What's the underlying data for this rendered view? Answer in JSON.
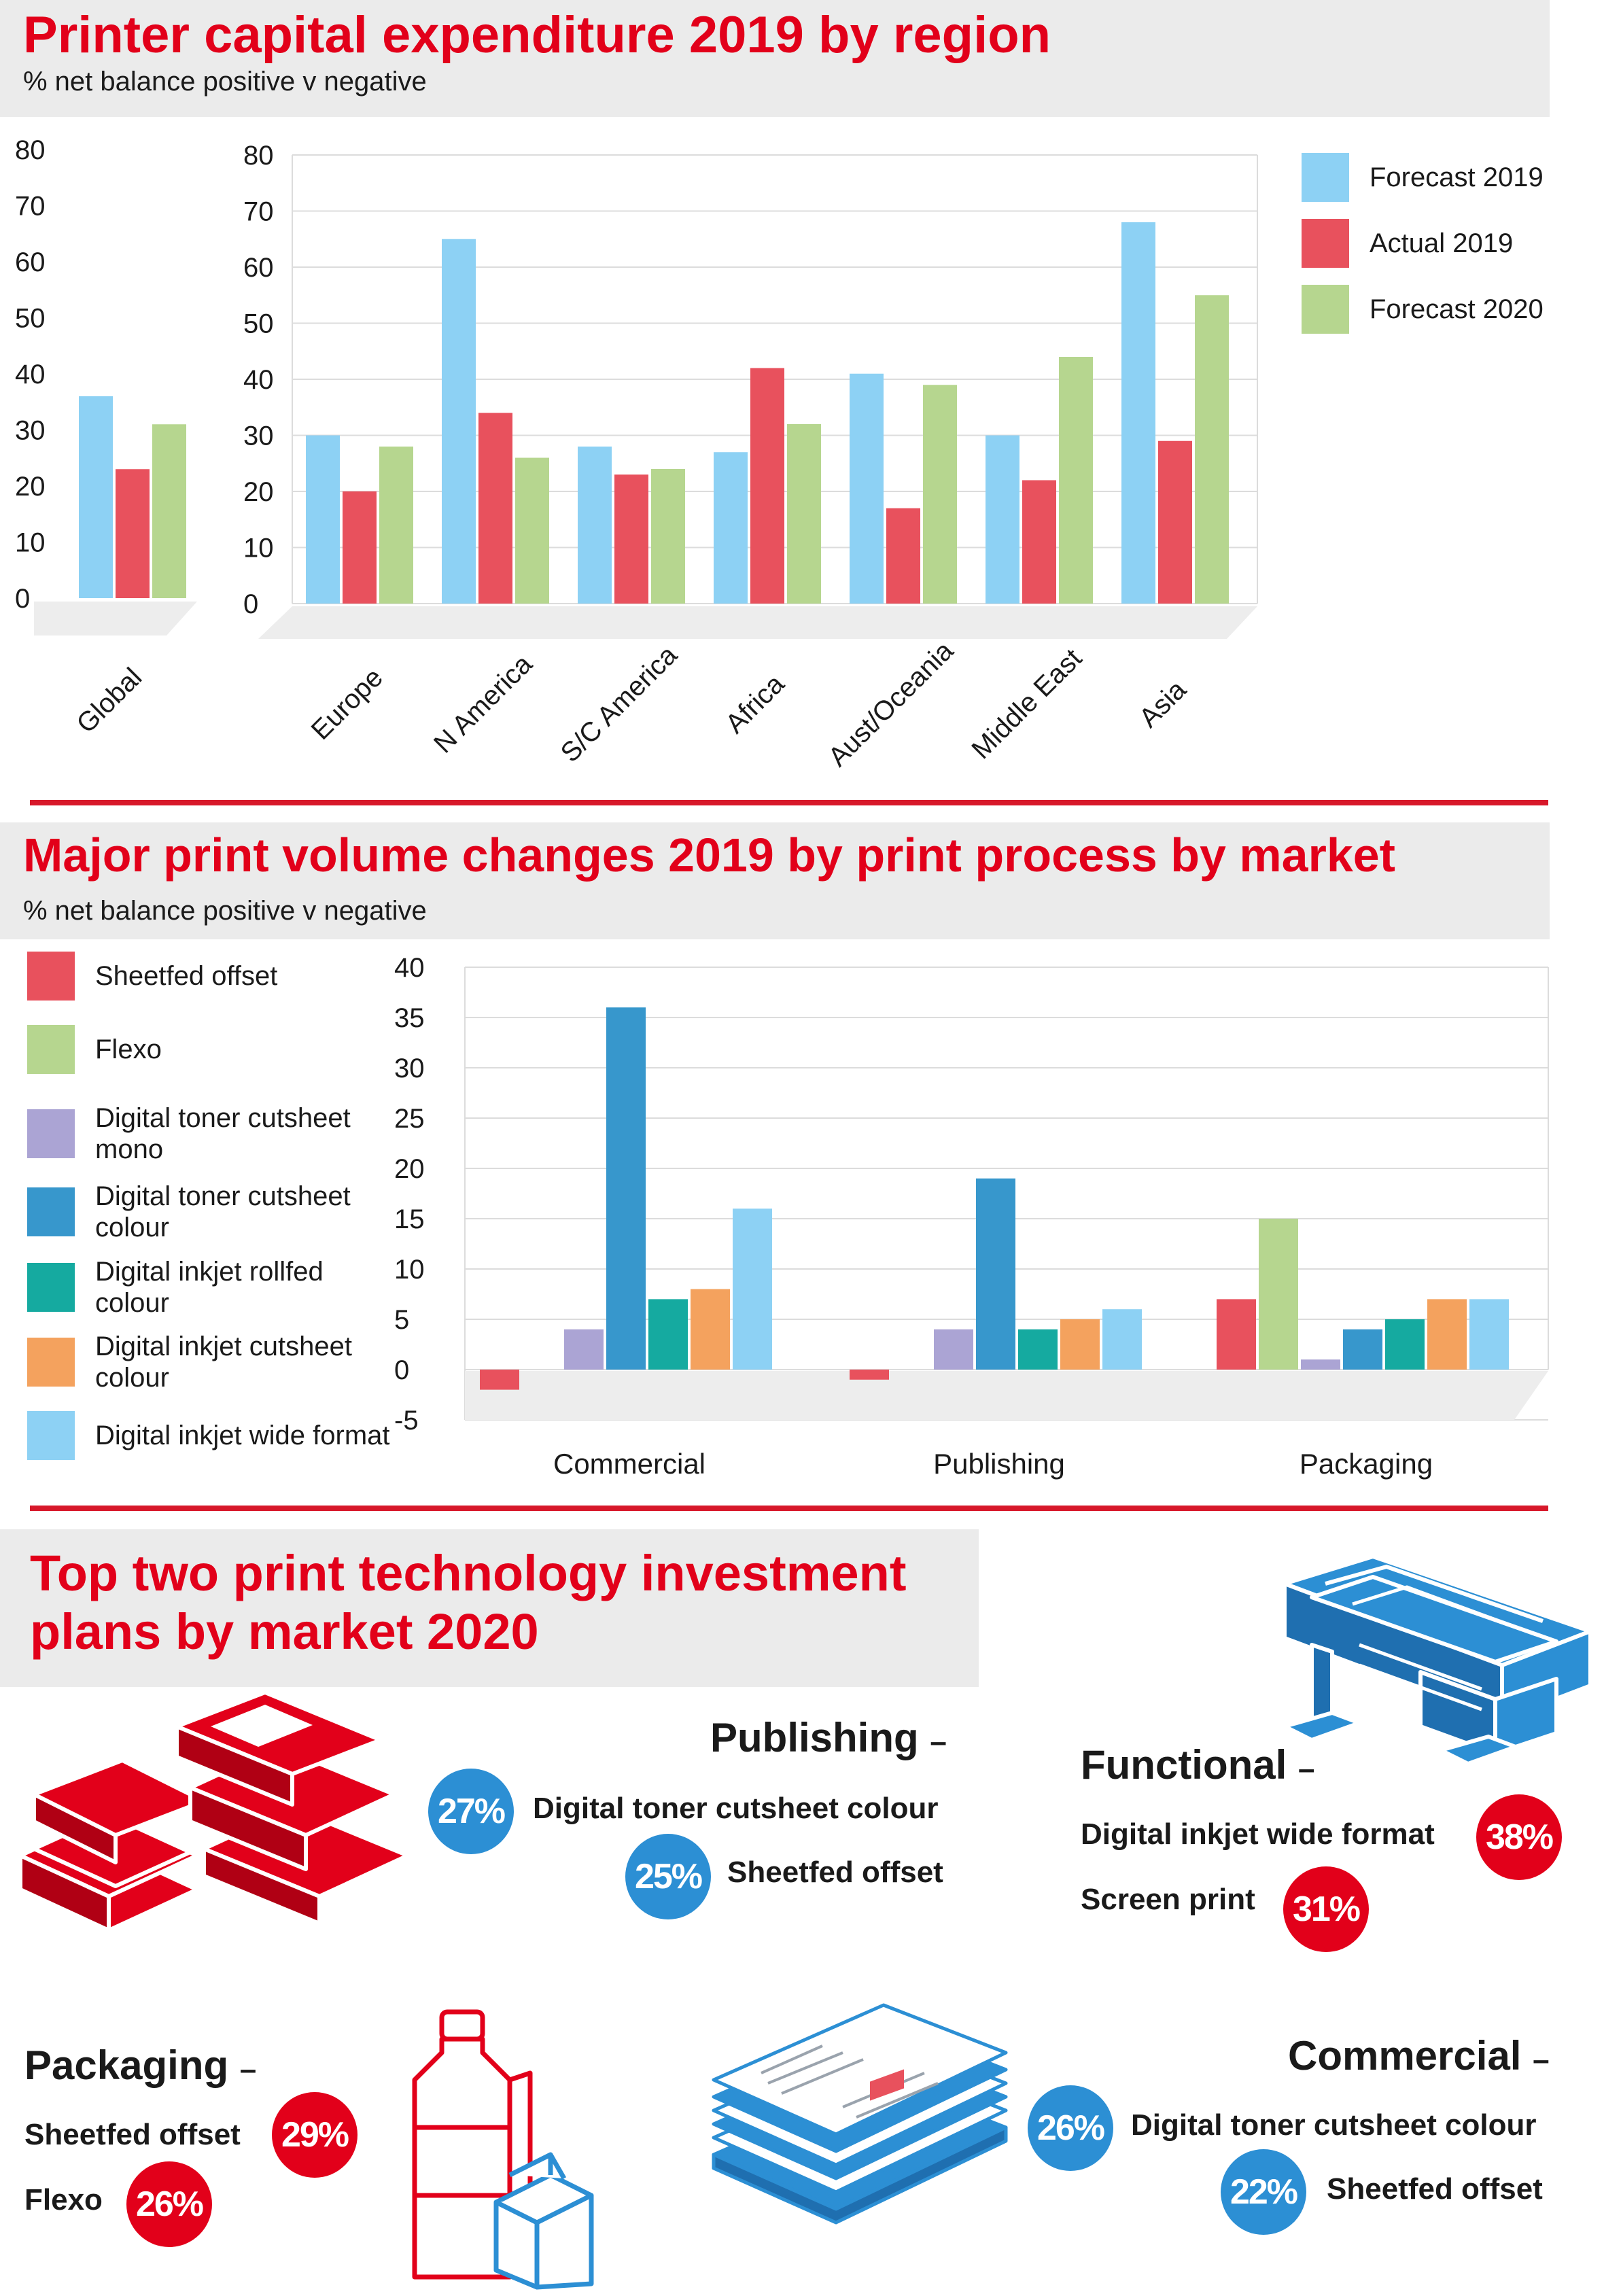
{
  "section1": {
    "title": "Printer capital expenditure 2019 by region",
    "subtitle": "% net balance positive v negative"
  },
  "section2": {
    "title": "Major print volume changes 2019 by print process by market",
    "subtitle": "% net balance positive v negative"
  },
  "section3": {
    "title_line1": "Top two print technology investment",
    "title_line2": "plans by market 2020",
    "publishing": {
      "title": "Publishing",
      "items": [
        {
          "pct": "27%",
          "label": "Digital toner cutsheet colour"
        },
        {
          "pct": "25%",
          "label": "Sheetfed offset"
        }
      ]
    },
    "functional": {
      "title": "Functional",
      "items": [
        {
          "pct": "38%",
          "label": "Digital inkjet wide format"
        },
        {
          "pct": "31%",
          "label": "Screen print"
        }
      ]
    },
    "packaging": {
      "title": "Packaging",
      "items": [
        {
          "pct": "29%",
          "label": "Sheetfed offset"
        },
        {
          "pct": "26%",
          "label": "Flexo"
        }
      ]
    },
    "commercial": {
      "title": "Commercial",
      "items": [
        {
          "pct": "26%",
          "label": "Digital toner cutsheet colour"
        },
        {
          "pct": "22%",
          "label": "Sheetfed offset"
        }
      ]
    },
    "dash": "–"
  },
  "colors": {
    "forecast_2019": "#8dd1f4",
    "actual_2019": "#e8515d",
    "forecast_2020": "#b6d68f",
    "sheetfed_offset": "#e8515d",
    "flexo": "#b6d68f",
    "toner_mono": "#aba4d4",
    "toner_colour": "#3797cc",
    "inkjet_rollfed": "#15aaa0",
    "inkjet_cutsheet": "#f4a25e",
    "inkjet_wide": "#8dd1f4",
    "accent_red": "#e2001a",
    "accent_blue": "#2c8fd4"
  },
  "chart_data": [
    {
      "type": "bar",
      "title": "Printer capital expenditure 2019 by region",
      "subtitle": "% net balance positive v negative",
      "categories": [
        "Global"
      ],
      "series": [
        {
          "name": "Forecast 2019",
          "values": [
            36
          ]
        },
        {
          "name": "Actual 2019",
          "values": [
            23
          ]
        },
        {
          "name": "Forecast 2020",
          "values": [
            31
          ]
        }
      ],
      "ylim": [
        0,
        80
      ],
      "yticks": [
        0,
        10,
        20,
        30,
        40,
        50,
        60,
        70,
        80
      ],
      "grid": false
    },
    {
      "type": "bar",
      "categories": [
        "Europe",
        "N America",
        "S/C America",
        "Africa",
        "Aust/Oceania",
        "Middle East",
        "Asia"
      ],
      "series": [
        {
          "name": "Forecast 2019",
          "values": [
            30,
            65,
            28,
            27,
            41,
            30,
            68
          ]
        },
        {
          "name": "Actual 2019",
          "values": [
            20,
            34,
            23,
            42,
            17,
            22,
            29
          ]
        },
        {
          "name": "Forecast 2020",
          "values": [
            28,
            26,
            24,
            32,
            39,
            44,
            55
          ]
        }
      ],
      "ylim": [
        0,
        80
      ],
      "yticks": [
        0,
        10,
        20,
        30,
        40,
        50,
        60,
        70,
        80
      ],
      "grid": true,
      "legend": "right"
    },
    {
      "type": "bar",
      "title": "Major print volume changes 2019 by print process by market",
      "subtitle": "% net balance positive v negative",
      "categories": [
        "Commercial",
        "Publishing",
        "Packaging"
      ],
      "series": [
        {
          "name": "Sheetfed offset",
          "values": [
            -2,
            -1,
            7
          ]
        },
        {
          "name": "Flexo",
          "values": [
            0,
            0,
            15
          ]
        },
        {
          "name": "Digital toner cutsheet mono",
          "values": [
            4,
            4,
            1
          ]
        },
        {
          "name": "Digital toner cutsheet colour",
          "values": [
            36,
            19,
            4
          ]
        },
        {
          "name": "Digital inkjet rollfed colour",
          "values": [
            7,
            4,
            5
          ]
        },
        {
          "name": "Digital inkjet cutsheet colour",
          "values": [
            8,
            5,
            7
          ]
        },
        {
          "name": "Digital inkjet wide format",
          "values": [
            16,
            6,
            7
          ]
        }
      ],
      "ylim": [
        -5,
        40
      ],
      "yticks": [
        -5,
        0,
        5,
        10,
        15,
        20,
        25,
        30,
        35,
        40
      ],
      "grid": true,
      "legend": "left"
    }
  ]
}
